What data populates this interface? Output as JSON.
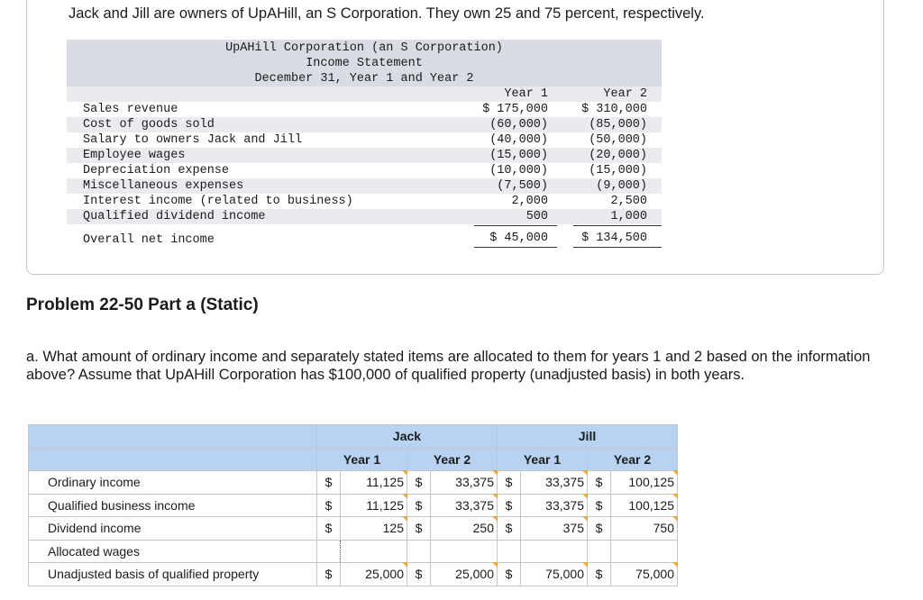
{
  "intro": "Jack and Jill are owners of UpAHill, an S Corporation. They own 25 and 75 percent, respectively.",
  "statement": {
    "title1": "UpAHill Corporation (an S Corporation)",
    "title2": "Income Statement",
    "title3": "December 31, Year 1 and Year 2",
    "col1": "Year 1",
    "col2": "Year 2",
    "rows": [
      {
        "label": "Sales revenue",
        "y1": "$ 175,000",
        "y2": "$ 310,000"
      },
      {
        "label": "Cost of goods sold",
        "y1": "(60,000)",
        "y2": "(85,000)"
      },
      {
        "label": "Salary to owners Jack and Jill",
        "y1": "(40,000)",
        "y2": "(50,000)"
      },
      {
        "label": "Employee wages",
        "y1": "(15,000)",
        "y2": "(20,000)"
      },
      {
        "label": "Depreciation expense",
        "y1": "(10,000)",
        "y2": "(15,000)"
      },
      {
        "label": "Miscellaneous expenses",
        "y1": "(7,500)",
        "y2": "(9,000)"
      },
      {
        "label": "Interest income (related to business)",
        "y1": "2,000",
        "y2": "2,500"
      },
      {
        "label": "Qualified dividend income",
        "y1": "500",
        "y2": "1,000"
      }
    ],
    "total": {
      "label": "Overall net income",
      "y1": "$ 45,000",
      "y2": "$ 134,500"
    }
  },
  "problem_title": "Problem 22-50 Part a (Static)",
  "question": "a. What amount of ordinary income and separately stated items are allocated to them for years 1 and 2 based on the information above? Assume that UpAHill Corporation has $100,000 of qualified property (unadjusted basis) in both years.",
  "table": {
    "group1": "Jack",
    "group2": "Jill",
    "years": [
      "Year 1",
      "Year 2",
      "Year 1",
      "Year 2"
    ],
    "rows": [
      {
        "label": "Ordinary income",
        "cells": [
          [
            "$",
            "11,125"
          ],
          [
            "$",
            "33,375"
          ],
          [
            "$",
            "33,375"
          ],
          [
            "$",
            "100,125"
          ]
        ]
      },
      {
        "label": "Qualified business income",
        "cells": [
          [
            "$",
            "11,125"
          ],
          [
            "$",
            "33,375"
          ],
          [
            "$",
            "33,375"
          ],
          [
            "$",
            "100,125"
          ]
        ]
      },
      {
        "label": "Dividend income",
        "cells": [
          [
            "$",
            "125"
          ],
          [
            "$",
            "250"
          ],
          [
            "$",
            "375"
          ],
          [
            "$",
            "750"
          ]
        ]
      },
      {
        "label": "Allocated wages",
        "cells": [
          [
            "",
            ""
          ],
          [
            "",
            ""
          ],
          [
            "",
            ""
          ],
          [
            "",
            ""
          ]
        ]
      },
      {
        "label": "Unadjusted basis of qualified property",
        "cells": [
          [
            "$",
            "25,000"
          ],
          [
            "$",
            "25,000"
          ],
          [
            "$",
            "75,000"
          ],
          [
            "$",
            "75,000"
          ]
        ]
      }
    ]
  }
}
